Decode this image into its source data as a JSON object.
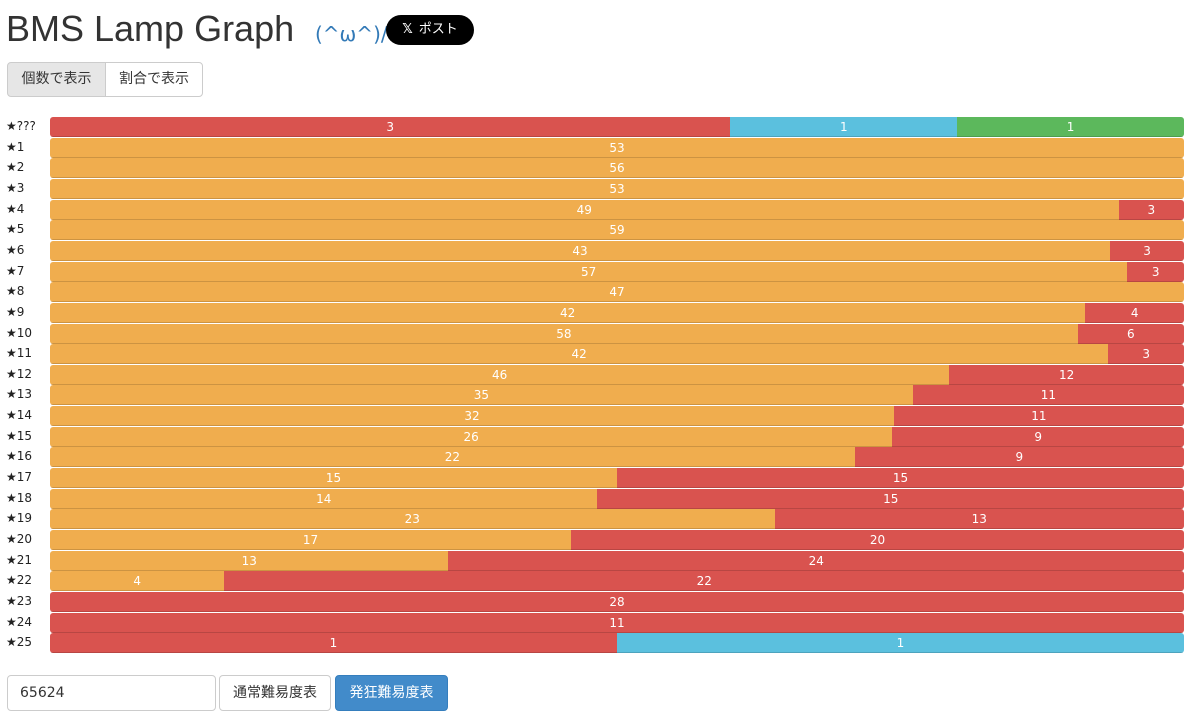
{
  "header": {
    "title": "BMS Lamp Graph",
    "emoticon": "(^ω^)/",
    "post_button": "ポスト"
  },
  "view_buttons": [
    "個数で表示",
    "割合で表示"
  ],
  "chart_data": {
    "type": "bar",
    "categories": [
      "★???",
      "★1",
      "★2",
      "★3",
      "★4",
      "★5",
      "★6",
      "★7",
      "★8",
      "★9",
      "★10",
      "★11",
      "★12",
      "★13",
      "★14",
      "★15",
      "★16",
      "★17",
      "★18",
      "★19",
      "★20",
      "★21",
      "★22",
      "★23",
      "★24",
      "★25"
    ],
    "series": [
      {
        "color": "#f0ad4e",
        "values": [
          null,
          53,
          56,
          53,
          49,
          59,
          43,
          57,
          47,
          42,
          58,
          42,
          46,
          35,
          32,
          26,
          22,
          15,
          14,
          23,
          17,
          13,
          4,
          null,
          null,
          null
        ]
      },
      {
        "color": "#d9534f",
        "values": [
          3,
          null,
          null,
          null,
          3,
          null,
          3,
          3,
          null,
          4,
          6,
          3,
          12,
          11,
          11,
          9,
          9,
          15,
          15,
          13,
          20,
          24,
          22,
          28,
          11,
          1
        ]
      },
      {
        "color": "#5bc0de",
        "values": [
          1,
          null,
          null,
          null,
          null,
          null,
          null,
          null,
          null,
          null,
          null,
          null,
          null,
          null,
          null,
          null,
          null,
          null,
          null,
          null,
          null,
          null,
          null,
          null,
          null,
          1
        ]
      },
      {
        "color": "#5cb85c",
        "values": [
          1,
          null,
          null,
          null,
          null,
          null,
          null,
          null,
          null,
          null,
          null,
          null,
          null,
          null,
          null,
          null,
          null,
          null,
          null,
          null,
          null,
          null,
          null,
          null,
          null,
          null
        ]
      }
    ]
  },
  "form": {
    "input_value": "65624",
    "buttons": [
      "通常難易度表",
      "発狂難易度表"
    ]
  }
}
